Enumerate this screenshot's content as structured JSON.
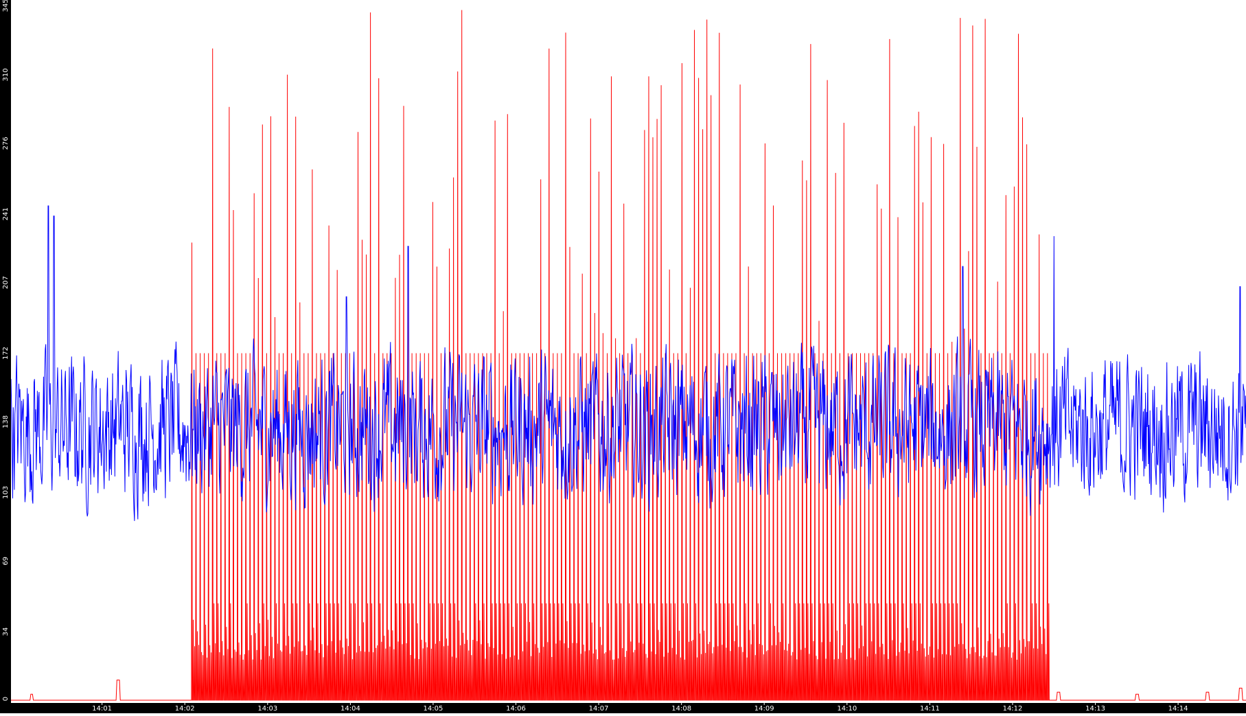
{
  "chart_data": {
    "type": "line",
    "title": "",
    "xlabel": "",
    "ylabel": "",
    "ylim": [
      0,
      345
    ],
    "xlim_minutes": [
      14.0,
      14.82
    ],
    "y_ticks": [
      "0",
      "34",
      "69",
      "103",
      "138",
      "172",
      "207",
      "241",
      "276",
      "310",
      "345"
    ],
    "x_ticks": [
      "14:01",
      "14:02",
      "14:03",
      "14:04",
      "14:05",
      "14:06",
      "14:07",
      "14:08",
      "14:09",
      "14:10",
      "14:11",
      "14:12",
      "14:13",
      "14:14"
    ],
    "x_tick_minutes": [
      1,
      2,
      3,
      4,
      5,
      6,
      7,
      8,
      9,
      10,
      11,
      12,
      13,
      14
    ],
    "x_range_minutes": [
      -0.1,
      14.82
    ],
    "grid": false,
    "legend": "none",
    "colors": {
      "background": "#ffffff",
      "y_axis_band": "#000000",
      "x_axis_band": "#000000",
      "tick_text": "#ffffff"
    },
    "series": [
      {
        "color": "#0000ff",
        "summary": "noisy baseline around 135 across the whole window, range roughly 75-245",
        "baseline": 135,
        "amplitude": 30,
        "peaks": [
          [
            0.35,
            245
          ],
          [
            0.42,
            240
          ],
          [
            3.95,
            200
          ],
          [
            4.7,
            225
          ],
          [
            11.4,
            215
          ],
          [
            12.5,
            230
          ],
          [
            14.75,
            205
          ]
        ],
        "x_range_minutes": [
          -0.1,
          14.82
        ]
      },
      {
        "color": "#ff0000",
        "summary": "burst of spikes between about 14:02 and 14:12; near zero outside",
        "active_range_minutes": [
          2.08,
          12.45
        ],
        "spike_levels": [
          172,
          48,
          20
        ],
        "tall_spike_range": [
          175,
          345
        ],
        "outside_activity": [
          [
            0.15,
            3
          ],
          [
            1.2,
            10
          ],
          [
            12.55,
            4
          ],
          [
            13.5,
            3
          ],
          [
            14.35,
            4
          ],
          [
            14.75,
            6
          ]
        ]
      }
    ]
  }
}
